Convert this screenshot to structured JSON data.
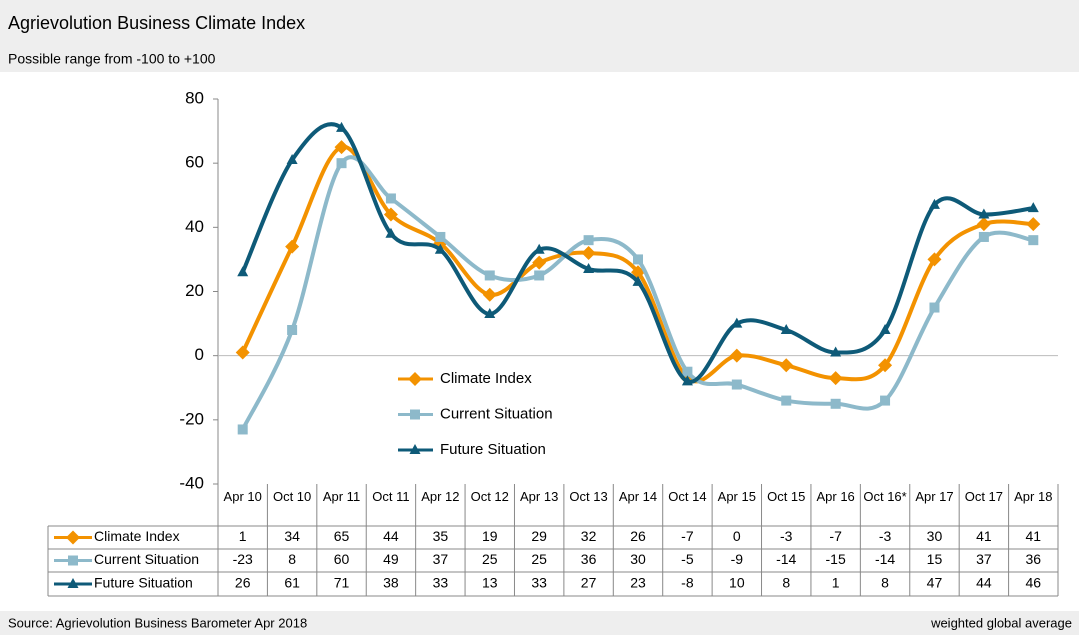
{
  "chart_data": {
    "type": "line",
    "title": "Agrievolution Business Climate Index",
    "subtitle": "Possible range from -100 to +100",
    "source": "Source: Agrievolution Business Barometer Apr 2018",
    "note": "weighted global average",
    "categories": [
      "Apr 10",
      "Oct 10",
      "Apr 11",
      "Oct 11",
      "Apr 12",
      "Oct 12",
      "Apr 13",
      "Oct 13",
      "Apr 14",
      "Oct 14",
      "Apr 15",
      "Oct 15",
      "Apr 16",
      "Oct 16*",
      "Apr 17",
      "Oct 17",
      "Apr 18"
    ],
    "series": [
      {
        "name": "Climate Index",
        "color": "#f39200",
        "marker": "diamond",
        "values": [
          1,
          34,
          65,
          44,
          35,
          19,
          29,
          32,
          26,
          -7,
          0,
          -3,
          -7,
          -3,
          30,
          41,
          41
        ]
      },
      {
        "name": "Current Situation",
        "color": "#8db9ca",
        "marker": "square",
        "values": [
          -23,
          8,
          60,
          49,
          37,
          25,
          25,
          36,
          30,
          -5,
          -9,
          -14,
          -15,
          -14,
          15,
          37,
          36
        ]
      },
      {
        "name": "Future Situation",
        "color": "#0e5a78",
        "marker": "triangle",
        "values": [
          26,
          61,
          71,
          38,
          33,
          13,
          33,
          27,
          23,
          -8,
          10,
          8,
          1,
          8,
          47,
          44,
          46
        ]
      }
    ],
    "ylim": [
      -40,
      80
    ],
    "yticks": [
      -40,
      -20,
      0,
      20,
      40,
      60,
      80
    ],
    "smooth": true
  }
}
